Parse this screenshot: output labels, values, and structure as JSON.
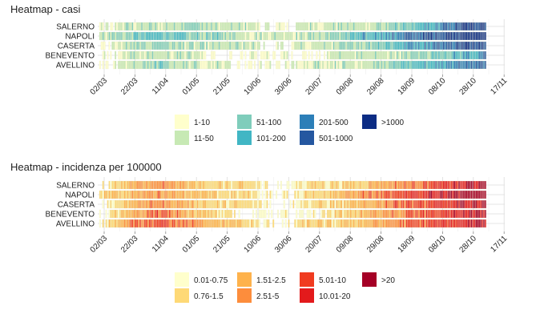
{
  "chart_data": [
    {
      "type": "heatmap",
      "title": "Heatmap - casi",
      "y_categories": [
        "SALERNO",
        "NAPOLI",
        "CASERTA",
        "BENEVENTO",
        "AVELLINO"
      ],
      "x_tick_labels": [
        "02/03",
        "22/03",
        "11/04",
        "01/05",
        "21/05",
        "10/06",
        "30/06",
        "20/07",
        "09/08",
        "29/08",
        "18/09",
        "08/10",
        "28/10",
        "17/11"
      ],
      "x_range": [
        "2020-02-25",
        "2020-11-01"
      ],
      "grid": true,
      "legend_position": "bottom",
      "legend": [
        {
          "label": "1-10",
          "color": "#ffffcc"
        },
        {
          "label": "11-50",
          "color": "#c7e9b4"
        },
        {
          "label": "51-100",
          "color": "#7fcdbb"
        },
        {
          "label": "101-200",
          "color": "#41b6c4"
        },
        {
          "label": "201-500",
          "color": "#2c7fb8"
        },
        {
          "label": "501-1000",
          "color": "#2557a0"
        },
        {
          "label": ">1000",
          "color": "#0c2c84"
        }
      ],
      "typical_level_by_period": {
        "SALERNO": [
          [
            0,
            1,
            1,
            2,
            1,
            1,
            0,
            1,
            1,
            1,
            2,
            3,
            5,
            6
          ]
        ],
        "NAPOLI": [
          [
            1,
            2,
            3,
            2,
            2,
            1,
            1,
            1,
            2,
            3,
            4,
            5,
            6,
            7
          ]
        ],
        "CASERTA": [
          [
            0,
            1,
            2,
            1,
            1,
            1,
            0,
            1,
            1,
            2,
            3,
            4,
            5,
            6
          ]
        ],
        "BENEVENTO": [
          [
            0,
            1,
            1,
            1,
            0,
            0,
            0,
            0,
            1,
            1,
            1,
            2,
            3,
            4
          ]
        ],
        "AVELLINO": [
          [
            0,
            1,
            2,
            1,
            1,
            0,
            0,
            1,
            1,
            1,
            2,
            3,
            4,
            5
          ]
        ]
      }
    },
    {
      "type": "heatmap",
      "title": "Heatmap - incidenza per 100000",
      "y_categories": [
        "SALERNO",
        "NAPOLI",
        "CASERTA",
        "BENEVENTO",
        "AVELLINO"
      ],
      "x_tick_labels": [
        "02/03",
        "22/03",
        "11/04",
        "01/05",
        "21/05",
        "10/06",
        "30/06",
        "20/07",
        "09/08",
        "29/08",
        "18/09",
        "08/10",
        "28/10",
        "17/11"
      ],
      "x_range": [
        "2020-02-25",
        "2020-11-01"
      ],
      "grid": true,
      "legend_position": "bottom",
      "legend": [
        {
          "label": "0.01-0.75",
          "color": "#ffffcc"
        },
        {
          "label": "0.76-1.5",
          "color": "#fed976"
        },
        {
          "label": "1.51-2.5",
          "color": "#feb24c"
        },
        {
          "label": "2.51-5",
          "color": "#fd8d3c"
        },
        {
          "label": "5.01-10",
          "color": "#f03b20"
        },
        {
          "label": "10.01-20",
          "color": "#e31a1c"
        },
        {
          "label": ">20",
          "color": "#a50026"
        }
      ],
      "typical_level_by_period": {
        "SALERNO": [
          [
            0,
            2,
            3,
            2,
            1,
            1,
            0,
            1,
            1,
            2,
            3,
            4,
            5,
            6
          ]
        ],
        "NAPOLI": [
          [
            1,
            2,
            3,
            2,
            1,
            1,
            0,
            1,
            2,
            3,
            4,
            5,
            6,
            7
          ]
        ],
        "CASERTA": [
          [
            0,
            2,
            3,
            2,
            1,
            1,
            0,
            1,
            1,
            2,
            4,
            4,
            5,
            6
          ]
        ],
        "BENEVENTO": [
          [
            0,
            2,
            4,
            2,
            1,
            0,
            0,
            0,
            1,
            2,
            3,
            4,
            5,
            6
          ]
        ],
        "AVELLINO": [
          [
            0,
            3,
            4,
            3,
            2,
            1,
            0,
            1,
            1,
            2,
            3,
            4,
            5,
            6
          ]
        ]
      }
    }
  ]
}
